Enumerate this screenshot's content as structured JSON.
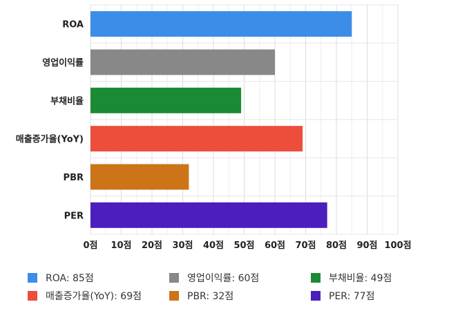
{
  "chart_data": {
    "type": "bar",
    "orientation": "horizontal",
    "categories": [
      "ROA",
      "영업이익률",
      "부채비율",
      "매출증가율(YoY)",
      "PBR",
      "PER"
    ],
    "values": [
      85,
      60,
      49,
      69,
      32,
      77
    ],
    "colors": [
      "#3b8de8",
      "#888888",
      "#1b8a35",
      "#ec4e3b",
      "#cc7418",
      "#4b1ebd"
    ],
    "xlim": [
      0,
      100
    ],
    "ticks": [
      0,
      10,
      20,
      30,
      40,
      50,
      60,
      70,
      80,
      90,
      100
    ],
    "tick_suffix": "점",
    "grid": true,
    "title": "",
    "xlabel": "",
    "ylabel": ""
  },
  "legend": {
    "placement": "bottom",
    "items": [
      {
        "label": "ROA: 85점",
        "color": "#3b8de8"
      },
      {
        "label": "영업이익률: 60점",
        "color": "#888888"
      },
      {
        "label": "부채비율: 49점",
        "color": "#1b8a35"
      },
      {
        "label": "매출증가율(YoY): 69점",
        "color": "#ec4e3b"
      },
      {
        "label": "PBR: 32점",
        "color": "#cc7418"
      },
      {
        "label": "PER: 77점",
        "color": "#4b1ebd"
      }
    ]
  }
}
